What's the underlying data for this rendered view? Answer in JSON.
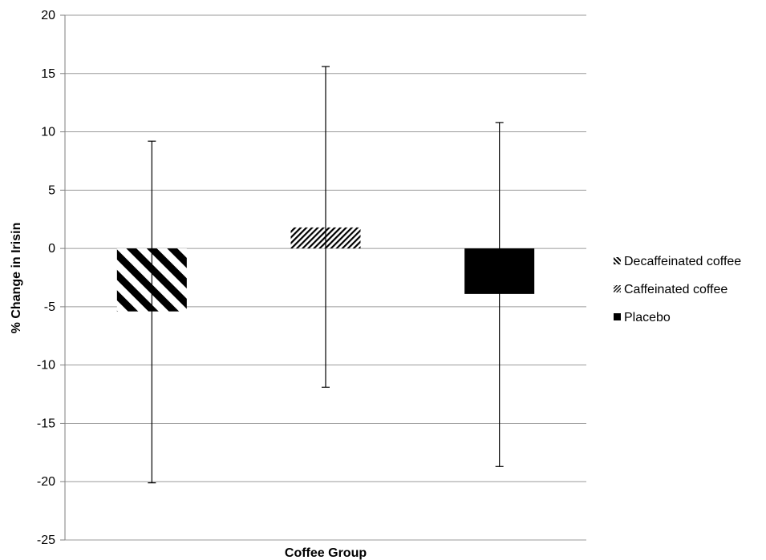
{
  "chart_data": {
    "type": "bar",
    "xlabel": "Coffee Group",
    "ylabel": "% Change in Irisin",
    "ylim": [
      -25,
      20
    ],
    "yticks": [
      20,
      15,
      10,
      5,
      0,
      -5,
      -10,
      -15,
      -20,
      -25
    ],
    "grid": true,
    "legend_position": "right",
    "series": [
      {
        "name": "Decaffeinated coffee",
        "value": -5.4,
        "error_upper": 9.2,
        "error_lower": -20.1,
        "pattern": "wide-diagonal-stripes"
      },
      {
        "name": "Caffeinated coffee",
        "value": 1.8,
        "error_upper": 15.6,
        "error_lower": -11.9,
        "pattern": "fine-diagonal-stripes"
      },
      {
        "name": "Placebo",
        "value": -3.9,
        "error_upper": 10.8,
        "error_lower": -18.7,
        "pattern": "solid-black"
      }
    ],
    "colors": {
      "bar": "#000000",
      "grid": "#9a9a9a",
      "axis": "#7f7f7f"
    }
  }
}
